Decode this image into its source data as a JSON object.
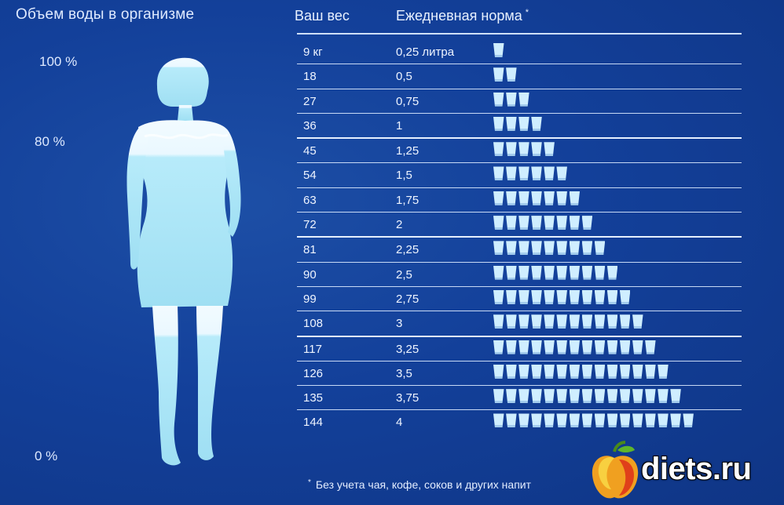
{
  "left": {
    "title": "Объем воды в организме",
    "scale": [
      "100 %",
      "80 %",
      "0 %"
    ]
  },
  "table": {
    "col_weight": "Ваш вес",
    "col_norm": "Ежедневная норма",
    "star": "*",
    "rows": [
      {
        "weight": "9 кг",
        "liters": "0,25 литра",
        "cups": 1
      },
      {
        "weight": "18",
        "liters": "0,5",
        "cups": 2
      },
      {
        "weight": "27",
        "liters": "0,75",
        "cups": 3
      },
      {
        "weight": "36",
        "liters": "1",
        "cups": 4
      },
      {
        "weight": "45",
        "liters": "1,25",
        "cups": 5
      },
      {
        "weight": "54",
        "liters": "1,5",
        "cups": 6
      },
      {
        "weight": "63",
        "liters": "1,75",
        "cups": 7
      },
      {
        "weight": "72",
        "liters": "2",
        "cups": 8
      },
      {
        "weight": "81",
        "liters": "2,25",
        "cups": 9
      },
      {
        "weight": "90",
        "liters": "2,5",
        "cups": 10
      },
      {
        "weight": "99",
        "liters": "2,75",
        "cups": 11
      },
      {
        "weight": "108",
        "liters": "3",
        "cups": 12
      },
      {
        "weight": "117",
        "liters": "3,25",
        "cups": 13
      },
      {
        "weight": "126",
        "liters": "3,5",
        "cups": 14
      },
      {
        "weight": "135",
        "liters": "3,75",
        "cups": 15
      },
      {
        "weight": "144",
        "liters": "4",
        "cups": 16
      }
    ]
  },
  "footnote": "Без учета чая, кофе, соков и других напит",
  "logo": {
    "text": "diets.ru"
  },
  "colors": {
    "background": "#13409a",
    "cup": "#cfeeff",
    "figure": "#a9e4f6"
  }
}
